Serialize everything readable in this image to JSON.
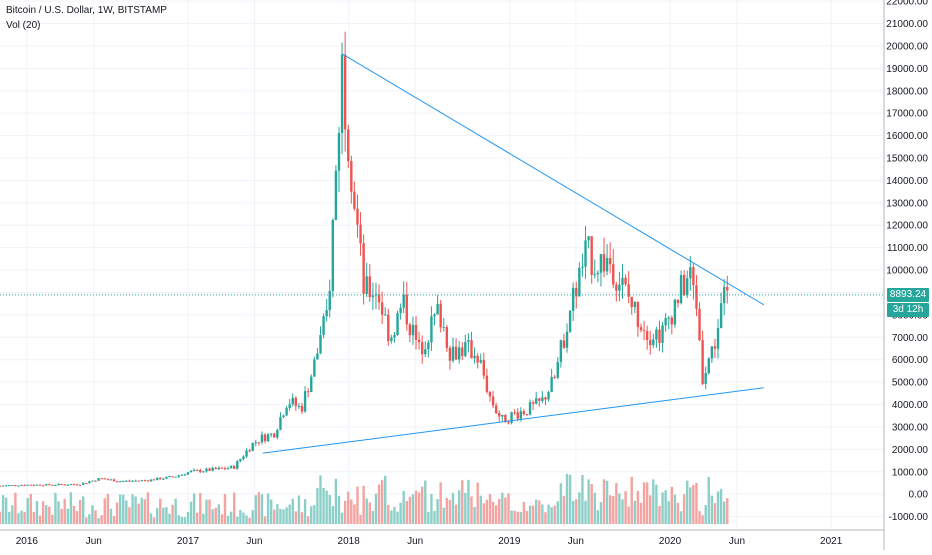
{
  "header": {
    "symbol_line": "Bitcoin / U.S. Dollar, 1W, BITSTAMP",
    "vol_line": "Vol (20)"
  },
  "last_price": {
    "label": "8893.24",
    "countdown": "3d 12h",
    "value": 8893.24
  },
  "colors": {
    "up": "#26a69a",
    "down": "#ef5350",
    "vol_up": "#8ccfc8",
    "vol_down": "#f4a3a1",
    "trendline": "#2196f3",
    "price_line": "#26a69a",
    "grid": "#f0f3fa",
    "text": "#131722"
  },
  "chart_data": {
    "type": "candlestick",
    "symbol": "Bitcoin / U.S. Dollar",
    "interval": "1W",
    "exchange": "BITSTAMP",
    "grid": true,
    "x_labels": [
      "2016",
      "Jun",
      "2017",
      "Jun",
      "2018",
      "Jun",
      "2019",
      "Jun",
      "2020",
      "Jun",
      "2021"
    ],
    "x_label_dates": [
      "2016-01",
      "2016-06",
      "2017-01",
      "2017-06",
      "2018-01",
      "2018-06",
      "2019-01",
      "2019-06",
      "2020-01",
      "2020-06",
      "2021-01"
    ],
    "y_tick_labels": [
      "-1000.00",
      "0.00",
      "1000.00",
      "2000.00",
      "3000.00",
      "4000.00",
      "5000.00",
      "6000.00",
      "7000.00",
      "8000.00",
      "9000.00",
      "10000.00",
      "11000.00",
      "12000.00",
      "13000.00",
      "14000.00",
      "15000.00",
      "16000.00",
      "17000.00",
      "18000.00",
      "19000.00",
      "20000.00",
      "21000.00",
      "22000.00"
    ],
    "y_ticks": [
      -1000,
      0,
      1000,
      2000,
      3000,
      4000,
      5000,
      6000,
      7000,
      8000,
      9000,
      10000,
      11000,
      12000,
      13000,
      14000,
      15000,
      16000,
      17000,
      18000,
      19000,
      20000,
      21000,
      22000
    ],
    "x_range": [
      "2015-11-01",
      "2021-05-01"
    ],
    "y_range": [
      -1700,
      22200
    ],
    "series": [
      {
        "name": "Bitcoin / U.S. Dollar",
        "kind": "weekly_close",
        "x": [
          "2015-11-01",
          "2016-01-01",
          "2016-03-01",
          "2016-05-01",
          "2016-06-15",
          "2016-08-01",
          "2016-10-01",
          "2016-12-01",
          "2017-01-05",
          "2017-03-01",
          "2017-04-15",
          "2017-05-25",
          "2017-06-15",
          "2017-07-15",
          "2017-08-15",
          "2017-09-15",
          "2017-10-15",
          "2017-11-15",
          "2017-12-17",
          "2018-01-05",
          "2018-02-05",
          "2018-03-05",
          "2018-04-05",
          "2018-05-05",
          "2018-06-10",
          "2018-07-25",
          "2018-08-20",
          "2018-09-20",
          "2018-10-20",
          "2018-11-20",
          "2018-12-15",
          "2019-01-15",
          "2019-02-15",
          "2019-03-15",
          "2019-04-15",
          "2019-05-15",
          "2019-06-25",
          "2019-07-15",
          "2019-08-15",
          "2019-09-15",
          "2019-10-15",
          "2019-11-15",
          "2019-12-15",
          "2020-01-15",
          "2020-02-15",
          "2020-03-01",
          "2020-03-15",
          "2020-04-01",
          "2020-04-15",
          "2020-05-01",
          "2020-05-10"
        ],
        "y": [
          380,
          420,
          420,
          450,
          700,
          580,
          620,
          780,
          1000,
          1100,
          1200,
          2200,
          2500,
          2700,
          4200,
          3800,
          5800,
          8200,
          19200,
          15000,
          9000,
          9200,
          7000,
          8500,
          6400,
          8200,
          6400,
          6500,
          6300,
          4200,
          3300,
          3600,
          3800,
          4100,
          5200,
          8000,
          10800,
          10300,
          10500,
          9300,
          8100,
          7200,
          7200,
          8700,
          9800,
          8500,
          5300,
          6200,
          7000,
          8800,
          8893
        ]
      }
    ],
    "trendlines": [
      {
        "from": [
          "2017-12-17",
          19650
        ],
        "to": [
          "2020-08-01",
          8450
        ]
      },
      {
        "from": [
          "2017-06-20",
          1830
        ],
        "to": [
          "2020-08-01",
          4750
        ]
      }
    ]
  }
}
